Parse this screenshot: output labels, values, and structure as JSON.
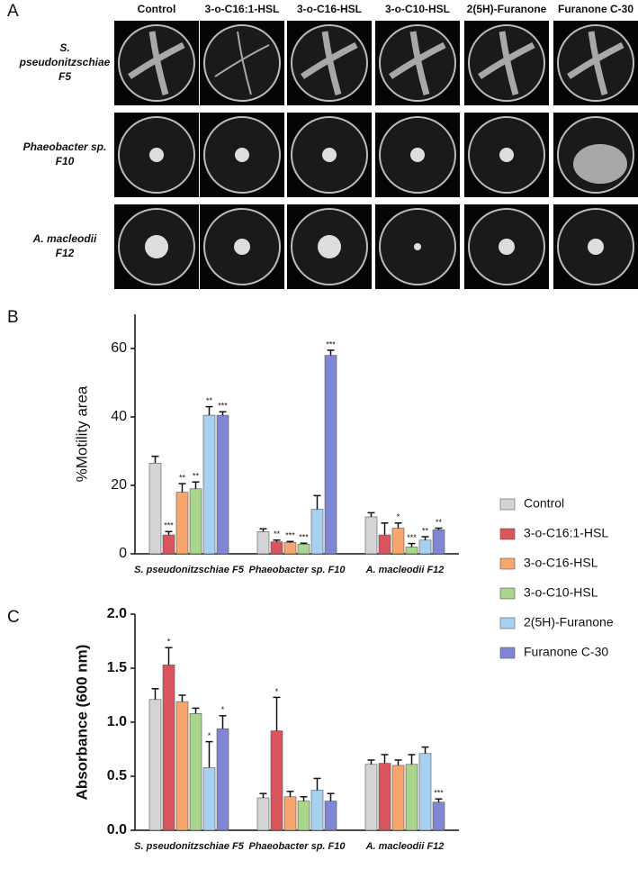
{
  "photo_panel": {
    "label": "A",
    "columns": [
      "Control",
      "3-o-C16:1-HSL",
      "3-o-C16-HSL",
      "3-o-C10-HSL",
      "2(5H)-Furanone",
      "Furanone C-30"
    ],
    "rows": [
      [
        "S.",
        "pseudonitzschiae",
        "F5"
      ],
      [
        "Phaeobacter sp.",
        "F10"
      ],
      [
        "A. macleodii",
        "F12"
      ]
    ]
  },
  "chart_data": [
    {
      "type": "bar",
      "panel_label": "B",
      "y_label": "%Motility area",
      "categories": [
        "S. pseudonitzschiae F5",
        "Phaeobacter sp. F10",
        "A. macleodii F12"
      ],
      "ylim": [
        0,
        70
      ],
      "yticks": [
        0,
        20,
        40,
        60
      ],
      "legend": "right",
      "series": [
        {
          "name": "Control",
          "color": "#d4d4d4",
          "values": [
            26.5,
            6.5,
            10.8
          ],
          "errors": [
            2,
            0.8,
            1.2
          ],
          "stars": [
            null,
            null,
            null
          ]
        },
        {
          "name": "3-o-C16:1-HSL",
          "color": "#d9545b",
          "values": [
            5.5,
            3.5,
            5.5
          ],
          "errors": [
            1,
            0.5,
            3.5
          ],
          "stars": [
            "***",
            "**",
            null
          ]
        },
        {
          "name": "3-o-C16-HSL",
          "color": "#f7a66f",
          "values": [
            18,
            3.3,
            7.5
          ],
          "errors": [
            2.5,
            0.3,
            1.5
          ],
          "stars": [
            "**",
            "***",
            "*"
          ]
        },
        {
          "name": "3-o-C10-HSL",
          "color": "#a9d58c",
          "values": [
            19,
            2.8,
            2
          ],
          "errors": [
            2,
            0.3,
            1
          ],
          "stars": [
            "**",
            "***",
            "***"
          ]
        },
        {
          "name": "2(5H)-Furanone",
          "color": "#a8d0ef",
          "values": [
            40.5,
            13,
            4
          ],
          "errors": [
            2.5,
            4,
            1
          ],
          "stars": [
            "**",
            null,
            "**"
          ]
        },
        {
          "name": "Furanone C-30",
          "color": "#7f86d4",
          "values": [
            40.5,
            58,
            7
          ],
          "errors": [
            1,
            1.5,
            0.5
          ],
          "stars": [
            "***",
            "***",
            "**"
          ]
        }
      ]
    },
    {
      "type": "bar",
      "panel_label": "C",
      "y_label": "Absorbance (600 nm)",
      "categories": [
        "S. pseudonitzschiae F5",
        "Phaeobacter sp. F10",
        "A. macleodii F12"
      ],
      "ylim": [
        0,
        2
      ],
      "yticks": [
        {
          "value": 0,
          "label": "0.0"
        },
        0.5,
        {
          "value": 1,
          "label": "1.0"
        },
        1.5,
        {
          "value": 2,
          "label": "2.0"
        }
      ],
      "series": [
        {
          "color": "#d4d4d4",
          "values": [
            1.21,
            0.3,
            0.61
          ],
          "errors": [
            0.1,
            0.04,
            0.04
          ],
          "stars": [
            null,
            null,
            null
          ]
        },
        {
          "color": "#d9545b",
          "values": [
            1.53,
            0.92,
            0.62
          ],
          "errors": [
            0.16,
            0.31,
            0.08
          ],
          "stars": [
            "*",
            "*",
            null
          ]
        },
        {
          "color": "#f7a66f",
          "values": [
            1.19,
            0.31,
            0.6
          ],
          "errors": [
            0.06,
            0.05,
            0.05
          ],
          "stars": [
            null,
            null,
            null
          ]
        },
        {
          "color": "#a9d58c",
          "values": [
            1.08,
            0.27,
            0.61
          ],
          "errors": [
            0.05,
            0.04,
            0.09
          ],
          "stars": [
            null,
            null,
            null
          ]
        },
        {
          "color": "#a8d0ef",
          "values": [
            0.58,
            0.37,
            0.71
          ],
          "errors": [
            0.24,
            0.11,
            0.06
          ],
          "stars": [
            "*",
            null,
            null
          ]
        },
        {
          "color": "#7f86d4",
          "values": [
            0.94,
            0.27,
            0.26
          ],
          "errors": [
            0.12,
            0.07,
            0.03
          ],
          "stars": [
            "*",
            null,
            "***"
          ]
        }
      ]
    }
  ]
}
